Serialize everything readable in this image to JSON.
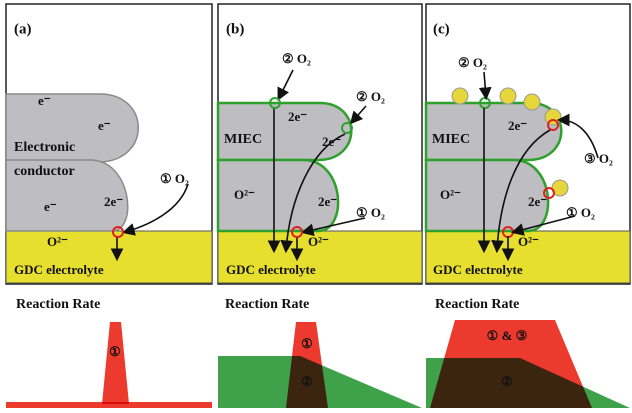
{
  "panels": [
    {
      "label": "(a)",
      "texts": [
        "e⁻",
        "e⁻",
        "Electronic",
        "conductor",
        "e⁻",
        "2e⁻",
        "① O₂",
        "O²⁻"
      ],
      "electrolyte": "GDC electrolyte",
      "rate_title": "Reaction Rate",
      "rate_labels": [
        "①"
      ]
    },
    {
      "label": "(b)",
      "texts": [
        "② O₂",
        "② O₂",
        "2e⁻",
        "2e⁻",
        "MIEC",
        "O²⁻",
        "2e⁻",
        "① O₂",
        "O²⁻"
      ],
      "electrolyte": "GDC electrolyte",
      "rate_title": "Reaction Rate",
      "rate_labels": [
        "①",
        "②"
      ]
    },
    {
      "label": "(c)",
      "texts": [
        "② O₂",
        "2e⁻",
        "MIEC",
        "③ O₂",
        "O²⁻",
        "2e⁻",
        "① O₂",
        "O²⁻"
      ],
      "electrolyte": "GDC electrolyte",
      "rate_title": "Reaction Rate",
      "rate_labels": [
        "① & ③",
        "②"
      ]
    }
  ]
}
